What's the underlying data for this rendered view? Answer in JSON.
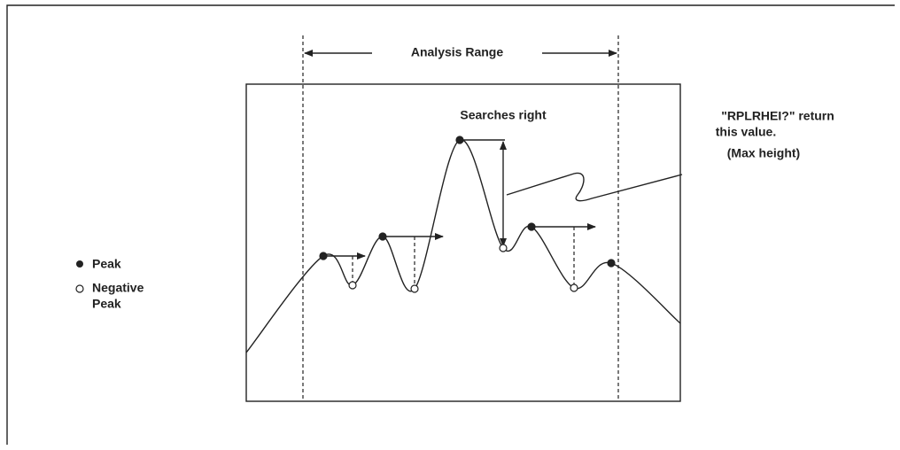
{
  "range_label": "Analysis Range",
  "search_label": "Searches right",
  "callout": {
    "lines": [
      "\"RPLRHEI?\" return",
      "this value.",
      "(Max height)"
    ]
  },
  "legend": {
    "peak": "Peak",
    "negative_peak": [
      "Negative",
      "Peak"
    ]
  }
}
